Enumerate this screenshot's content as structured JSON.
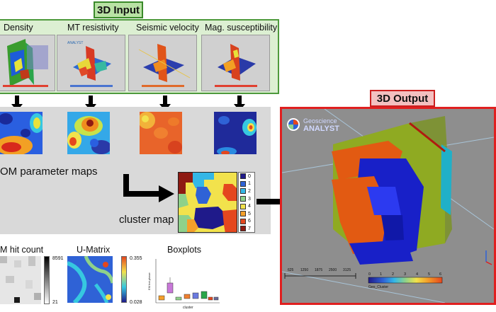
{
  "input": {
    "title": "3D Input",
    "labels": [
      "Density",
      "MT resistivity",
      "Seismic velocity",
      "Mag. susceptibility"
    ]
  },
  "som": {
    "caption": "OM parameter maps"
  },
  "cluster": {
    "caption": "cluster map",
    "legend": [
      "0",
      "1",
      "2",
      "3",
      "4",
      "5",
      "6",
      "7"
    ],
    "colors": [
      "#1f1a8a",
      "#2f62d6",
      "#34b7e6",
      "#8ed18a",
      "#f2e24c",
      "#f4a02a",
      "#e4471e",
      "#8e1a12"
    ]
  },
  "output": {
    "title": "3D Output",
    "logo_top": "Geoscience",
    "logo_bottom": "ANALYST",
    "colorbar_ticks": [
      "0",
      "1",
      "2",
      "3",
      "4",
      "5",
      "6"
    ],
    "colorbar_label": "Geo_Cluster",
    "scale_ticks": [
      "625",
      "1250",
      "1875",
      "2500",
      "3125"
    ],
    "accent": "#e01f1f"
  },
  "bottom": {
    "hit_label": "M hit count",
    "hit_max": "8591",
    "hit_min": "21",
    "umatrix_label": "U-Matrix",
    "umatrix_max": "0.355",
    "umatrix_min": "0.028",
    "boxplot_label": "Boxplots",
    "boxplot_ylabel": "EM bot.phase",
    "boxplot_xlabel": "cluster"
  }
}
